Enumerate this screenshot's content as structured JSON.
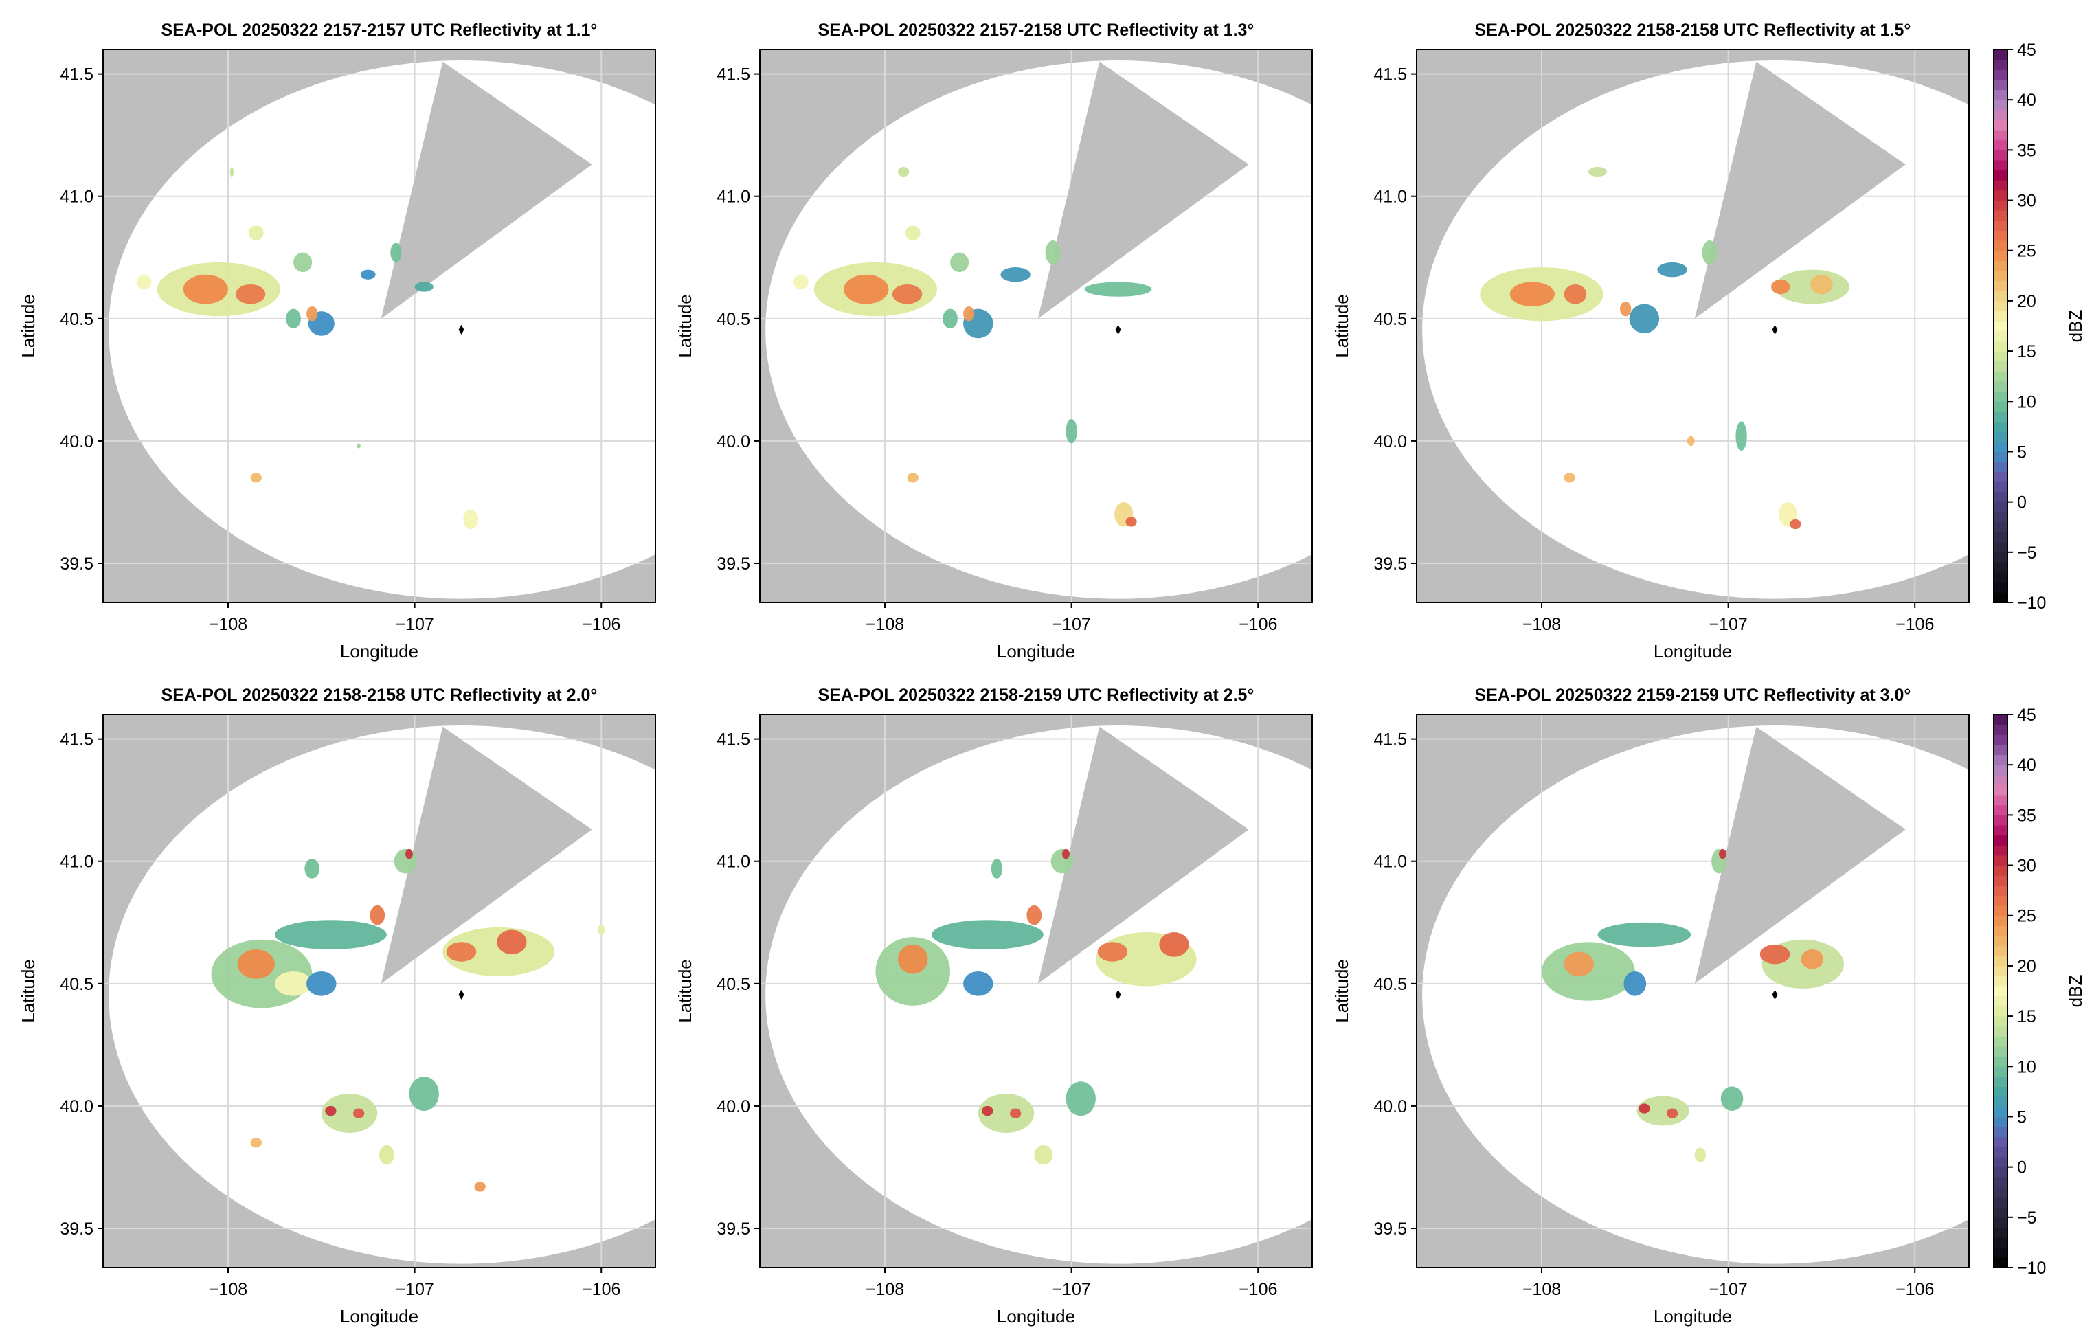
{
  "chart_data": {
    "type": "heatmap",
    "xlabel": "Longitude",
    "ylabel": "Latitude",
    "xlim": [
      -108.67,
      -105.71
    ],
    "ylim": [
      39.34,
      41.6
    ],
    "xticks": [
      -108,
      -107,
      -106
    ],
    "xtick_labels": [
      "−108",
      "−107",
      "−106"
    ],
    "yticks": [
      39.5,
      40.0,
      40.5,
      41.0,
      41.5
    ],
    "ytick_labels": [
      "39.5",
      "40.0",
      "40.5",
      "41.0",
      "41.5"
    ],
    "grid": true,
    "radar": {
      "lon": -106.75,
      "lat": 40.455,
      "range_lon": 1.89,
      "range_lat": 1.1
    },
    "blocked_sector": [
      [
        -107.18,
        40.5
      ],
      [
        -106.85,
        41.55
      ],
      [
        -106.05,
        41.13
      ]
    ],
    "colorbar": {
      "label": "dBZ",
      "range": [
        -10,
        45
      ],
      "ticks": [
        -10,
        -5,
        0,
        5,
        10,
        15,
        20,
        25,
        30,
        35,
        40,
        45
      ],
      "tick_labels": [
        "−10",
        "−5",
        "0",
        "5",
        "10",
        "15",
        "20",
        "25",
        "30",
        "35",
        "40",
        "45"
      ],
      "stops": [
        [
          -10,
          "#000000"
        ],
        [
          -5,
          "#2a2238"
        ],
        [
          0,
          "#4a3f7a"
        ],
        [
          2.5,
          "#6457a8"
        ],
        [
          5,
          "#3f8fc4"
        ],
        [
          7.5,
          "#48a6a0"
        ],
        [
          10,
          "#73c09a"
        ],
        [
          12.5,
          "#a7d69b"
        ],
        [
          15,
          "#dde99e"
        ],
        [
          17.5,
          "#f8f8b8"
        ],
        [
          20,
          "#f1d98a"
        ],
        [
          22.5,
          "#f0b365"
        ],
        [
          25,
          "#ee8a4b"
        ],
        [
          27.5,
          "#e2614a"
        ],
        [
          30,
          "#c9363f"
        ],
        [
          32.5,
          "#a5004f"
        ],
        [
          35,
          "#cc3a8a"
        ],
        [
          37.5,
          "#e07fb4"
        ],
        [
          40,
          "#a983bf"
        ],
        [
          42.5,
          "#7a3a8c"
        ],
        [
          45,
          "#4a0f55"
        ]
      ]
    },
    "colors": {
      "blocked": "#bebebe",
      "in_range": "#ffffff",
      "outside": "#bebebe",
      "grid": "#d9d9d9"
    },
    "panels": [
      {
        "title": "SEA-POL 20250322 2157-2157 UTC Reflectivity at 1.1°",
        "cells": [
          [
            -108.05,
            40.62,
            0.33,
            0.11,
            15
          ],
          [
            -108.12,
            40.62,
            0.12,
            0.06,
            25
          ],
          [
            -107.88,
            40.6,
            0.08,
            0.04,
            26
          ],
          [
            -108.45,
            40.65,
            0.04,
            0.03,
            17
          ],
          [
            -107.5,
            40.48,
            0.07,
            0.05,
            5
          ],
          [
            -107.55,
            40.52,
            0.03,
            0.03,
            24
          ],
          [
            -107.65,
            40.5,
            0.04,
            0.04,
            10
          ],
          [
            -107.1,
            40.77,
            0.03,
            0.04,
            10
          ],
          [
            -106.95,
            40.63,
            0.05,
            0.02,
            8
          ],
          [
            -107.25,
            40.68,
            0.04,
            0.02,
            5
          ],
          [
            -107.6,
            40.73,
            0.05,
            0.04,
            12
          ],
          [
            -107.85,
            40.85,
            0.04,
            0.03,
            16
          ],
          [
            -107.85,
            39.85,
            0.03,
            0.02,
            22
          ],
          [
            -106.7,
            39.68,
            0.04,
            0.04,
            17
          ],
          [
            -107.3,
            39.98,
            0.01,
            0.01,
            12
          ],
          [
            -107.98,
            41.1,
            0.01,
            0.02,
            14
          ]
        ]
      },
      {
        "title": "SEA-POL 20250322 2157-2158 UTC Reflectivity at 1.3°",
        "cells": [
          [
            -108.05,
            40.62,
            0.33,
            0.11,
            15
          ],
          [
            -108.1,
            40.62,
            0.12,
            0.06,
            25
          ],
          [
            -107.88,
            40.6,
            0.08,
            0.04,
            26
          ],
          [
            -108.45,
            40.65,
            0.04,
            0.03,
            17
          ],
          [
            -107.5,
            40.48,
            0.08,
            0.06,
            6
          ],
          [
            -107.55,
            40.52,
            0.03,
            0.03,
            24
          ],
          [
            -107.65,
            40.5,
            0.04,
            0.04,
            10
          ],
          [
            -107.1,
            40.77,
            0.04,
            0.05,
            12
          ],
          [
            -106.75,
            40.62,
            0.18,
            0.03,
            10
          ],
          [
            -107.3,
            40.68,
            0.08,
            0.03,
            6
          ],
          [
            -107.6,
            40.73,
            0.05,
            0.04,
            12
          ],
          [
            -107.85,
            40.85,
            0.04,
            0.03,
            16
          ],
          [
            -107.0,
            40.04,
            0.03,
            0.05,
            10
          ],
          [
            -107.85,
            39.85,
            0.03,
            0.02,
            22
          ],
          [
            -106.72,
            39.7,
            0.05,
            0.05,
            20
          ],
          [
            -106.68,
            39.67,
            0.03,
            0.02,
            27
          ],
          [
            -107.9,
            41.1,
            0.03,
            0.02,
            14
          ]
        ]
      },
      {
        "title": "SEA-POL 20250322 2158-2158 UTC Reflectivity at 1.5°",
        "cells": [
          [
            -108.0,
            40.6,
            0.33,
            0.11,
            15
          ],
          [
            -108.05,
            40.6,
            0.12,
            0.05,
            25
          ],
          [
            -107.82,
            40.6,
            0.06,
            0.04,
            26
          ],
          [
            -107.45,
            40.5,
            0.08,
            0.06,
            6
          ],
          [
            -107.55,
            40.54,
            0.03,
            0.03,
            24
          ],
          [
            -107.1,
            40.77,
            0.04,
            0.05,
            12
          ],
          [
            -107.3,
            40.7,
            0.08,
            0.03,
            6
          ],
          [
            -106.55,
            40.63,
            0.2,
            0.07,
            14
          ],
          [
            -106.72,
            40.63,
            0.05,
            0.03,
            25
          ],
          [
            -106.5,
            40.64,
            0.06,
            0.04,
            22
          ],
          [
            -106.93,
            40.02,
            0.03,
            0.06,
            10
          ],
          [
            -107.85,
            39.85,
            0.03,
            0.02,
            22
          ],
          [
            -107.2,
            40.0,
            0.02,
            0.02,
            22
          ],
          [
            -106.68,
            39.7,
            0.05,
            0.05,
            18
          ],
          [
            -106.64,
            39.66,
            0.03,
            0.02,
            27
          ],
          [
            -107.7,
            41.1,
            0.05,
            0.02,
            14
          ]
        ]
      },
      {
        "title": "SEA-POL 20250322 2158-2158 UTC Reflectivity at 2.0°",
        "cells": [
          [
            -107.82,
            40.54,
            0.27,
            0.14,
            12
          ],
          [
            -107.85,
            40.58,
            0.1,
            0.06,
            25
          ],
          [
            -107.65,
            40.5,
            0.1,
            0.05,
            17
          ],
          [
            -107.5,
            40.5,
            0.08,
            0.05,
            5
          ],
          [
            -107.45,
            40.7,
            0.3,
            0.06,
            9
          ],
          [
            -107.2,
            40.78,
            0.04,
            0.04,
            26
          ],
          [
            -107.05,
            41.0,
            0.06,
            0.05,
            12
          ],
          [
            -107.03,
            41.03,
            0.02,
            0.02,
            30
          ],
          [
            -107.55,
            40.97,
            0.04,
            0.04,
            10
          ],
          [
            -106.55,
            40.63,
            0.3,
            0.1,
            15
          ],
          [
            -106.75,
            40.63,
            0.08,
            0.04,
            26
          ],
          [
            -106.48,
            40.67,
            0.08,
            0.05,
            27
          ],
          [
            -107.35,
            39.97,
            0.15,
            0.08,
            14
          ],
          [
            -107.45,
            39.98,
            0.03,
            0.02,
            30
          ],
          [
            -107.3,
            39.97,
            0.03,
            0.02,
            28
          ],
          [
            -106.95,
            40.05,
            0.08,
            0.07,
            10
          ],
          [
            -107.15,
            39.8,
            0.04,
            0.04,
            15
          ],
          [
            -107.85,
            39.85,
            0.03,
            0.02,
            22
          ],
          [
            -106.65,
            39.67,
            0.03,
            0.02,
            24
          ],
          [
            -106.0,
            40.72,
            0.02,
            0.02,
            16
          ]
        ]
      },
      {
        "title": "SEA-POL 20250322 2158-2159 UTC Reflectivity at 2.5°",
        "cells": [
          [
            -107.85,
            40.55,
            0.2,
            0.14,
            12
          ],
          [
            -107.85,
            40.6,
            0.08,
            0.06,
            25
          ],
          [
            -107.5,
            40.5,
            0.08,
            0.05,
            5
          ],
          [
            -107.45,
            40.7,
            0.3,
            0.06,
            9
          ],
          [
            -107.2,
            40.78,
            0.04,
            0.04,
            26
          ],
          [
            -107.05,
            41.0,
            0.06,
            0.05,
            12
          ],
          [
            -107.03,
            41.03,
            0.02,
            0.02,
            30
          ],
          [
            -107.4,
            40.97,
            0.03,
            0.04,
            10
          ],
          [
            -106.6,
            40.6,
            0.27,
            0.11,
            15
          ],
          [
            -106.78,
            40.63,
            0.08,
            0.04,
            26
          ],
          [
            -106.45,
            40.66,
            0.08,
            0.05,
            27
          ],
          [
            -107.35,
            39.97,
            0.15,
            0.08,
            14
          ],
          [
            -107.45,
            39.98,
            0.03,
            0.02,
            30
          ],
          [
            -107.3,
            39.97,
            0.03,
            0.02,
            28
          ],
          [
            -106.95,
            40.03,
            0.08,
            0.07,
            10
          ],
          [
            -107.15,
            39.8,
            0.05,
            0.04,
            15
          ]
        ]
      },
      {
        "title": "SEA-POL 20250322 2159-2159 UTC Reflectivity at 3.0°",
        "cells": [
          [
            -107.75,
            40.55,
            0.25,
            0.12,
            12
          ],
          [
            -107.8,
            40.58,
            0.08,
            0.05,
            24
          ],
          [
            -107.5,
            40.5,
            0.06,
            0.05,
            5
          ],
          [
            -107.45,
            40.7,
            0.25,
            0.05,
            9
          ],
          [
            -107.05,
            41.0,
            0.04,
            0.05,
            12
          ],
          [
            -107.03,
            41.03,
            0.02,
            0.02,
            30
          ],
          [
            -106.6,
            40.58,
            0.22,
            0.1,
            14
          ],
          [
            -106.75,
            40.62,
            0.08,
            0.04,
            27
          ],
          [
            -106.55,
            40.6,
            0.06,
            0.04,
            24
          ],
          [
            -107.35,
            39.98,
            0.14,
            0.06,
            14
          ],
          [
            -107.45,
            39.99,
            0.03,
            0.02,
            30
          ],
          [
            -107.3,
            39.97,
            0.03,
            0.02,
            28
          ],
          [
            -106.98,
            40.03,
            0.06,
            0.05,
            10
          ],
          [
            -107.15,
            39.8,
            0.03,
            0.03,
            15
          ]
        ]
      }
    ]
  }
}
